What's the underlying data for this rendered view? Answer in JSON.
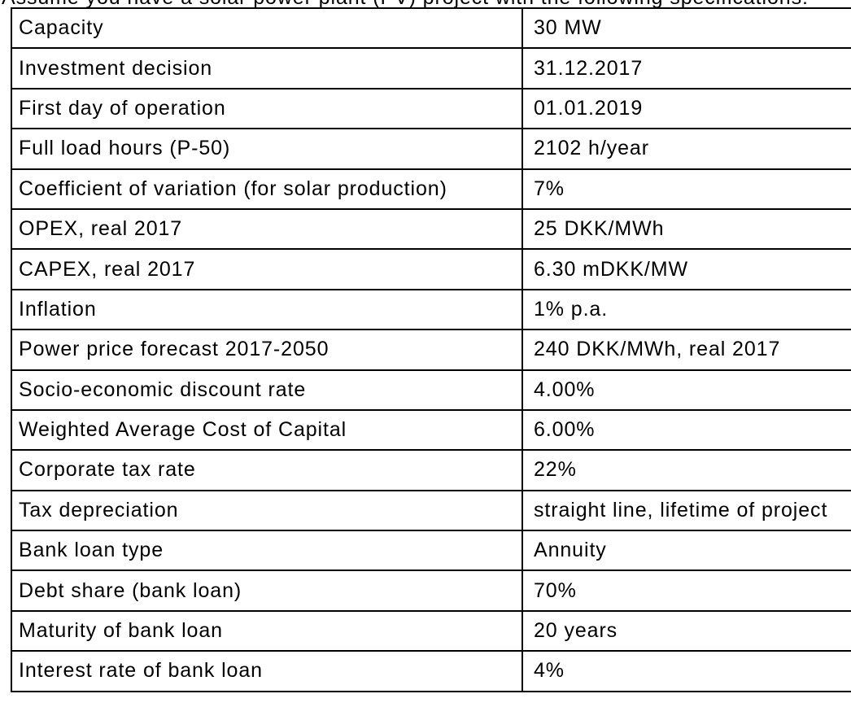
{
  "page": {
    "background_color": "#ffffff",
    "text_color": "#000000",
    "border_color": "#000000",
    "intro_text": "Assume you have a solar power plant (PV) project with the following specifications:"
  },
  "table": {
    "rows": [
      {
        "label": "Capacity",
        "value": "30 MW"
      },
      {
        "label": "Investment decision",
        "value": "31.12.2017"
      },
      {
        "label": "First day of operation",
        "value": "01.01.2019"
      },
      {
        "label": "Full load hours (P-50)",
        "value": "2102 h/year"
      },
      {
        "label": "Coefficient of variation (for solar production)",
        "value": "7%"
      },
      {
        "label": "OPEX, real 2017",
        "value": "25 DKK/MWh"
      },
      {
        "label": "CAPEX, real 2017",
        "value": "6.30 mDKK/MW"
      },
      {
        "label": "Inflation",
        "value": "1% p.a."
      },
      {
        "label": "Power price forecast 2017-2050",
        "value": "240 DKK/MWh, real 2017"
      },
      {
        "label": "Socio-economic discount rate",
        "value": "4.00%"
      },
      {
        "label": "Weighted Average Cost of Capital",
        "value": "6.00%"
      },
      {
        "label": "Corporate tax rate",
        "value": "22%"
      },
      {
        "label": "Tax depreciation",
        "value": "straight line, lifetime of project"
      },
      {
        "label": "Bank loan type",
        "value": "Annuity"
      },
      {
        "label": "Debt share (bank loan)",
        "value": "70%"
      },
      {
        "label": "Maturity of bank loan",
        "value": "20 years"
      },
      {
        "label": "Interest rate of bank loan",
        "value": "4%"
      }
    ]
  }
}
